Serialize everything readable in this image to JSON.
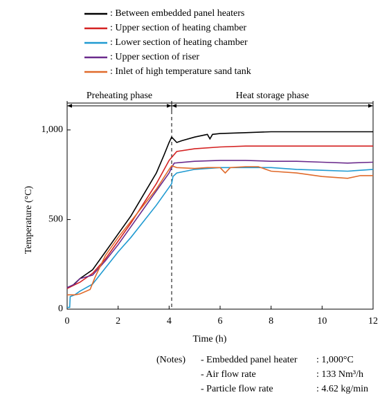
{
  "chart_data": {
    "type": "line",
    "x_label": "Time (h)",
    "y_label": "Temperature (°C)",
    "xlim": [
      0,
      12
    ],
    "xticks": [
      0,
      2,
      4,
      6,
      8,
      10,
      12
    ],
    "ylim": [
      0,
      1150
    ],
    "yticks": [
      0,
      500,
      {
        "value": 1000,
        "label": "1,000"
      }
    ],
    "phases": [
      {
        "text": "Preheating phase",
        "x_start": 0,
        "x_end": 4.1
      },
      {
        "text": "Heat storage phase",
        "x_start": 4.1,
        "x_end": 12
      }
    ],
    "series": [
      {
        "name": ": Between embedded panel heaters",
        "color": "#000000",
        "x": [
          0,
          0.2,
          0.5,
          1,
          1.5,
          2,
          2.5,
          3,
          3.5,
          3.8,
          4,
          4.1,
          4.3,
          4.5,
          5,
          5.5,
          5.6,
          5.7,
          6,
          7,
          8,
          9,
          10,
          11,
          12
        ],
        "values": [
          120,
          130,
          170,
          220,
          320,
          420,
          520,
          640,
          760,
          860,
          930,
          960,
          930,
          940,
          960,
          975,
          950,
          975,
          980,
          985,
          990,
          990,
          990,
          990,
          990
        ]
      },
      {
        "name": ": Upper section of heating chamber",
        "color": "#d42020",
        "x": [
          0,
          0.5,
          1,
          1.5,
          2,
          2.5,
          3,
          3.5,
          4,
          4.3,
          5,
          6,
          7,
          8,
          9,
          10,
          11,
          12
        ],
        "values": [
          115,
          150,
          200,
          280,
          380,
          480,
          590,
          700,
          830,
          880,
          895,
          905,
          910,
          910,
          910,
          910,
          910,
          910
        ]
      },
      {
        "name": ": Lower section of heating chamber",
        "color": "#1f9ad1",
        "x": [
          0,
          0.1,
          0.12,
          0.3,
          0.5,
          1,
          1.5,
          2,
          2.5,
          3,
          3.5,
          4,
          4.1,
          4.15,
          4.3,
          5,
          6,
          7,
          8,
          9,
          10,
          11,
          12
        ],
        "values": [
          10,
          10,
          70,
          80,
          100,
          140,
          230,
          320,
          400,
          490,
          580,
          680,
          700,
          740,
          760,
          780,
          790,
          790,
          790,
          780,
          775,
          770,
          780
        ]
      },
      {
        "name": ": Upper section of riser",
        "color": "#6a2a8c",
        "x": [
          0,
          0.3,
          0.5,
          1,
          1.5,
          2,
          2.5,
          3,
          3.5,
          4,
          4.1,
          4.2,
          5,
          6,
          7,
          8,
          9,
          10,
          11,
          12
        ],
        "values": [
          120,
          140,
          170,
          190,
          270,
          360,
          460,
          560,
          660,
          760,
          790,
          815,
          825,
          830,
          830,
          825,
          825,
          820,
          815,
          820
        ]
      },
      {
        "name": ": Inlet of high temperature sand tank",
        "color": "#e06a2a",
        "x": [
          0,
          0.3,
          0.5,
          0.9,
          1.1,
          1.5,
          2,
          2.5,
          3,
          3.5,
          4,
          4.1,
          4.3,
          5,
          5.5,
          6,
          6.2,
          6.4,
          7,
          7.5,
          8,
          9,
          10,
          11,
          11.5,
          12
        ],
        "values": [
          80,
          80,
          85,
          110,
          180,
          300,
          400,
          490,
          580,
          670,
          780,
          800,
          790,
          785,
          790,
          790,
          760,
          790,
          795,
          795,
          770,
          760,
          740,
          730,
          745,
          745
        ]
      }
    ],
    "notes": {
      "heading": "(Notes)",
      "rows": [
        [
          "- Embedded panel heater",
          ": 1,000°C"
        ],
        [
          "- Air flow rate",
          ": 133 Nm³/h"
        ],
        [
          "- Particle flow rate",
          ": 4.62 kg/min"
        ]
      ]
    }
  }
}
